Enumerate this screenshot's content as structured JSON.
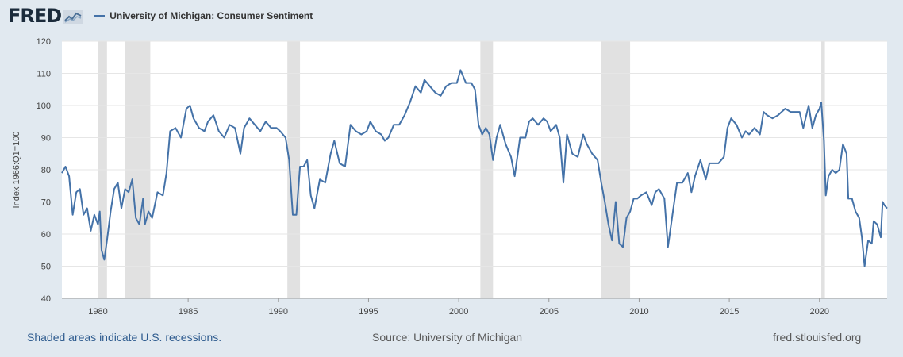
{
  "header": {
    "logo_text": "FRED",
    "legend_label": "University of Michigan: Consumer Sentiment",
    "series_color": "#4472a8"
  },
  "footer": {
    "recessions_note": "Shaded areas indicate U.S. recessions.",
    "source": "Source: University of Michigan",
    "url": "fred.stlouisfed.org"
  },
  "chart_data": {
    "type": "line",
    "ylabel": "Index 1966:Q1=100",
    "ylim": [
      40,
      120
    ],
    "xlim": [
      1978.0,
      2023.75
    ],
    "y_ticks": [
      40,
      50,
      60,
      70,
      80,
      90,
      100,
      110,
      120
    ],
    "x_ticks": [
      1980,
      1985,
      1990,
      1995,
      2000,
      2005,
      2010,
      2015,
      2020
    ],
    "grid": "horizontal",
    "recessions": [
      [
        1980.0,
        1980.5
      ],
      [
        1981.5,
        1982.9
      ],
      [
        1990.5,
        1991.2
      ],
      [
        2001.2,
        2001.9
      ],
      [
        2007.9,
        2009.5
      ],
      [
        2020.1,
        2020.3
      ]
    ],
    "series": [
      {
        "name": "University of Michigan: Consumer Sentiment",
        "points": [
          [
            1978.0,
            79
          ],
          [
            1978.2,
            81
          ],
          [
            1978.4,
            78
          ],
          [
            1978.6,
            66
          ],
          [
            1978.8,
            73
          ],
          [
            1979.0,
            74
          ],
          [
            1979.2,
            66
          ],
          [
            1979.4,
            68
          ],
          [
            1979.6,
            61
          ],
          [
            1979.8,
            66
          ],
          [
            1980.0,
            63
          ],
          [
            1980.1,
            67
          ],
          [
            1980.2,
            55
          ],
          [
            1980.35,
            52
          ],
          [
            1980.5,
            58
          ],
          [
            1980.7,
            67
          ],
          [
            1980.9,
            74
          ],
          [
            1981.1,
            76
          ],
          [
            1981.3,
            68
          ],
          [
            1981.5,
            74
          ],
          [
            1981.7,
            73
          ],
          [
            1981.9,
            77
          ],
          [
            1982.1,
            65
          ],
          [
            1982.3,
            63
          ],
          [
            1982.5,
            71
          ],
          [
            1982.6,
            63
          ],
          [
            1982.8,
            67
          ],
          [
            1983.0,
            65
          ],
          [
            1983.3,
            73
          ],
          [
            1983.6,
            72
          ],
          [
            1983.8,
            79
          ],
          [
            1984.0,
            92
          ],
          [
            1984.3,
            93
          ],
          [
            1984.6,
            90
          ],
          [
            1984.9,
            99
          ],
          [
            1985.1,
            100
          ],
          [
            1985.3,
            96
          ],
          [
            1985.6,
            93
          ],
          [
            1985.9,
            92
          ],
          [
            1986.1,
            95
          ],
          [
            1986.4,
            97
          ],
          [
            1986.7,
            92
          ],
          [
            1987.0,
            90
          ],
          [
            1987.3,
            94
          ],
          [
            1987.6,
            93
          ],
          [
            1987.9,
            85
          ],
          [
            1988.1,
            93
          ],
          [
            1988.4,
            96
          ],
          [
            1988.7,
            94
          ],
          [
            1989.0,
            92
          ],
          [
            1989.3,
            95
          ],
          [
            1989.6,
            93
          ],
          [
            1989.9,
            93
          ],
          [
            1990.1,
            92
          ],
          [
            1990.4,
            90
          ],
          [
            1990.6,
            83
          ],
          [
            1990.8,
            66
          ],
          [
            1991.0,
            66
          ],
          [
            1991.2,
            81
          ],
          [
            1991.4,
            81
          ],
          [
            1991.6,
            83
          ],
          [
            1991.8,
            72
          ],
          [
            1992.0,
            68
          ],
          [
            1992.3,
            77
          ],
          [
            1992.6,
            76
          ],
          [
            1992.9,
            85
          ],
          [
            1993.1,
            89
          ],
          [
            1993.4,
            82
          ],
          [
            1993.7,
            81
          ],
          [
            1994.0,
            94
          ],
          [
            1994.3,
            92
          ],
          [
            1994.6,
            91
          ],
          [
            1994.9,
            92
          ],
          [
            1995.1,
            95
          ],
          [
            1995.4,
            92
          ],
          [
            1995.7,
            91
          ],
          [
            1995.9,
            89
          ],
          [
            1996.1,
            90
          ],
          [
            1996.4,
            94
          ],
          [
            1996.7,
            94
          ],
          [
            1997.0,
            97
          ],
          [
            1997.3,
            101
          ],
          [
            1997.6,
            106
          ],
          [
            1997.9,
            104
          ],
          [
            1998.1,
            108
          ],
          [
            1998.4,
            106
          ],
          [
            1998.7,
            104
          ],
          [
            1999.0,
            103
          ],
          [
            1999.3,
            106
          ],
          [
            1999.6,
            107
          ],
          [
            1999.9,
            107
          ],
          [
            2000.1,
            111
          ],
          [
            2000.4,
            107
          ],
          [
            2000.7,
            107
          ],
          [
            2000.9,
            105
          ],
          [
            2001.1,
            94
          ],
          [
            2001.3,
            91
          ],
          [
            2001.5,
            93
          ],
          [
            2001.7,
            91
          ],
          [
            2001.9,
            83
          ],
          [
            2002.1,
            90
          ],
          [
            2002.3,
            94
          ],
          [
            2002.6,
            88
          ],
          [
            2002.9,
            84
          ],
          [
            2003.1,
            78
          ],
          [
            2003.4,
            90
          ],
          [
            2003.7,
            90
          ],
          [
            2003.9,
            95
          ],
          [
            2004.1,
            96
          ],
          [
            2004.4,
            94
          ],
          [
            2004.7,
            96
          ],
          [
            2004.9,
            95
          ],
          [
            2005.1,
            92
          ],
          [
            2005.4,
            94
          ],
          [
            2005.6,
            90
          ],
          [
            2005.8,
            76
          ],
          [
            2006.0,
            91
          ],
          [
            2006.3,
            85
          ],
          [
            2006.6,
            84
          ],
          [
            2006.9,
            91
          ],
          [
            2007.1,
            88
          ],
          [
            2007.4,
            85
          ],
          [
            2007.7,
            83
          ],
          [
            2007.9,
            76
          ],
          [
            2008.1,
            70
          ],
          [
            2008.3,
            63
          ],
          [
            2008.5,
            58
          ],
          [
            2008.7,
            70
          ],
          [
            2008.9,
            57
          ],
          [
            2009.1,
            56
          ],
          [
            2009.3,
            65
          ],
          [
            2009.5,
            67
          ],
          [
            2009.7,
            71
          ],
          [
            2009.9,
            71
          ],
          [
            2010.1,
            72
          ],
          [
            2010.4,
            73
          ],
          [
            2010.7,
            69
          ],
          [
            2010.9,
            73
          ],
          [
            2011.1,
            74
          ],
          [
            2011.4,
            71
          ],
          [
            2011.6,
            56
          ],
          [
            2011.9,
            68
          ],
          [
            2012.1,
            76
          ],
          [
            2012.4,
            76
          ],
          [
            2012.7,
            79
          ],
          [
            2012.9,
            73
          ],
          [
            2013.1,
            78
          ],
          [
            2013.4,
            83
          ],
          [
            2013.7,
            77
          ],
          [
            2013.9,
            82
          ],
          [
            2014.1,
            82
          ],
          [
            2014.4,
            82
          ],
          [
            2014.7,
            84
          ],
          [
            2014.9,
            93
          ],
          [
            2015.1,
            96
          ],
          [
            2015.4,
            94
          ],
          [
            2015.7,
            90
          ],
          [
            2015.9,
            92
          ],
          [
            2016.1,
            91
          ],
          [
            2016.4,
            93
          ],
          [
            2016.7,
            91
          ],
          [
            2016.9,
            98
          ],
          [
            2017.1,
            97
          ],
          [
            2017.4,
            96
          ],
          [
            2017.7,
            97
          ],
          [
            2017.9,
            98
          ],
          [
            2018.1,
            99
          ],
          [
            2018.4,
            98
          ],
          [
            2018.7,
            98
          ],
          [
            2018.9,
            98
          ],
          [
            2019.1,
            93
          ],
          [
            2019.4,
            100
          ],
          [
            2019.6,
            93
          ],
          [
            2019.8,
            97
          ],
          [
            2020.0,
            99
          ],
          [
            2020.1,
            101
          ],
          [
            2020.25,
            89
          ],
          [
            2020.35,
            72
          ],
          [
            2020.5,
            78
          ],
          [
            2020.7,
            80
          ],
          [
            2020.9,
            79
          ],
          [
            2021.1,
            80
          ],
          [
            2021.3,
            88
          ],
          [
            2021.5,
            85
          ],
          [
            2021.6,
            71
          ],
          [
            2021.8,
            71
          ],
          [
            2022.0,
            67
          ],
          [
            2022.2,
            65
          ],
          [
            2022.35,
            59
          ],
          [
            2022.5,
            50
          ],
          [
            2022.7,
            58
          ],
          [
            2022.9,
            57
          ],
          [
            2023.0,
            64
          ],
          [
            2023.2,
            63
          ],
          [
            2023.4,
            59
          ],
          [
            2023.5,
            70
          ],
          [
            2023.6,
            69
          ],
          [
            2023.75,
            68
          ]
        ]
      }
    ]
  }
}
